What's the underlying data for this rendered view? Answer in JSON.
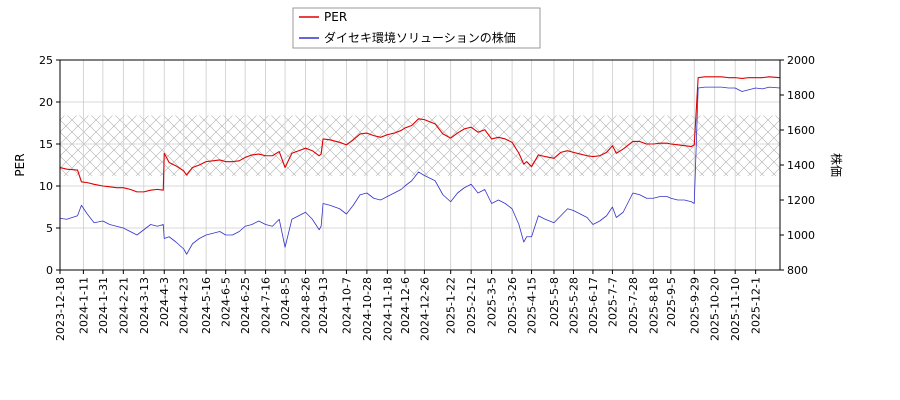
{
  "chart_data": {
    "type": "line",
    "legend": {
      "placement": "top-center",
      "entries": [
        {
          "label": "PER",
          "color": "#dd0000"
        },
        {
          "label": "ダイセキ環境ソリューションの株価",
          "color": "#3333cc"
        }
      ]
    },
    "x_start": "2023-12-18",
    "x_end": "2025-12-26",
    "x_ticks": [
      "2023-12-18",
      "2024-1-11",
      "2024-1-31",
      "2024-2-21",
      "2024-3-13",
      "2024-4-3",
      "2024-4-23",
      "2024-5-16",
      "2024-6-5",
      "2024-6-25",
      "2024-7-16",
      "2024-8-5",
      "2024-8-26",
      "2024-9-13",
      "2024-10-7",
      "2024-10-28",
      "2024-11-18",
      "2024-12-6",
      "2024-12-26",
      "2025-1-22",
      "2025-2-12",
      "2025-3-5",
      "2025-3-26",
      "2025-4-15",
      "2025-5-8",
      "2025-5-28",
      "2025-6-17",
      "2025-7-7",
      "2025-7-28",
      "2025-8-18",
      "2025-9-5",
      "2025-9-29",
      "2025-10-20",
      "2025-11-10",
      "2025-12-1"
    ],
    "y_left": {
      "label": "PER",
      "min": 0,
      "max": 25,
      "ticks": [
        0,
        5,
        10,
        15,
        20,
        25
      ]
    },
    "y_right": {
      "label": "株価",
      "min": 800,
      "max": 2000,
      "ticks": [
        800,
        1000,
        1200,
        1400,
        1600,
        1800,
        2000
      ]
    },
    "per_band": [
      11.2,
      18.4
    ],
    "grid": true,
    "series": [
      {
        "name": "PER",
        "axis": "left",
        "color": "#dd0000",
        "points": [
          [
            "2023-12-18",
            12.2
          ],
          [
            "2023-12-25",
            12.0
          ],
          [
            "2024-1-5",
            11.9
          ],
          [
            "2024-1-9",
            10.5
          ],
          [
            "2024-1-15",
            10.4
          ],
          [
            "2024-1-22",
            10.2
          ],
          [
            "2024-1-31",
            10.0
          ],
          [
            "2024-2-7",
            9.9
          ],
          [
            "2024-2-14",
            9.8
          ],
          [
            "2024-2-21",
            9.8
          ],
          [
            "2024-2-28",
            9.6
          ],
          [
            "2024-3-6",
            9.3
          ],
          [
            "2024-3-13",
            9.3
          ],
          [
            "2024-3-20",
            9.5
          ],
          [
            "2024-3-27",
            9.6
          ],
          [
            "2024-4-2",
            9.5
          ],
          [
            "2024-4-3",
            13.9
          ],
          [
            "2024-4-8",
            12.8
          ],
          [
            "2024-4-15",
            12.4
          ],
          [
            "2024-4-23",
            11.8
          ],
          [
            "2024-4-26",
            11.3
          ],
          [
            "2024-5-2",
            12.2
          ],
          [
            "2024-5-9",
            12.5
          ],
          [
            "2024-5-16",
            12.9
          ],
          [
            "2024-5-23",
            13.0
          ],
          [
            "2024-5-30",
            13.1
          ],
          [
            "2024-6-5",
            12.9
          ],
          [
            "2024-6-12",
            12.9
          ],
          [
            "2024-6-19",
            13.0
          ],
          [
            "2024-6-25",
            13.4
          ],
          [
            "2024-7-2",
            13.7
          ],
          [
            "2024-7-9",
            13.8
          ],
          [
            "2024-7-16",
            13.6
          ],
          [
            "2024-7-23",
            13.6
          ],
          [
            "2024-7-30",
            14.1
          ],
          [
            "2024-8-5",
            12.2
          ],
          [
            "2024-8-12",
            13.9
          ],
          [
            "2024-8-19",
            14.2
          ],
          [
            "2024-8-26",
            14.5
          ],
          [
            "2024-9-2",
            14.2
          ],
          [
            "2024-9-9",
            13.6
          ],
          [
            "2024-9-11",
            13.8
          ],
          [
            "2024-9-13",
            15.6
          ],
          [
            "2024-9-20",
            15.5
          ],
          [
            "2024-9-30",
            15.2
          ],
          [
            "2024-10-7",
            14.9
          ],
          [
            "2024-10-14",
            15.5
          ],
          [
            "2024-10-21",
            16.2
          ],
          [
            "2024-10-28",
            16.3
          ],
          [
            "2024-11-4",
            16.0
          ],
          [
            "2024-11-11",
            15.8
          ],
          [
            "2024-11-18",
            16.1
          ],
          [
            "2024-11-25",
            16.3
          ],
          [
            "2024-12-2",
            16.6
          ],
          [
            "2024-12-6",
            16.9
          ],
          [
            "2024-12-13",
            17.2
          ],
          [
            "2024-12-20",
            18.0
          ],
          [
            "2024-12-26",
            17.9
          ],
          [
            "2025-1-6",
            17.4
          ],
          [
            "2025-1-14",
            16.2
          ],
          [
            "2025-1-22",
            15.7
          ],
          [
            "2025-1-29",
            16.3
          ],
          [
            "2025-2-5",
            16.8
          ],
          [
            "2025-2-12",
            17.0
          ],
          [
            "2025-2-19",
            16.4
          ],
          [
            "2025-2-26",
            16.7
          ],
          [
            "2025-3-5",
            15.6
          ],
          [
            "2025-3-12",
            15.8
          ],
          [
            "2025-3-19",
            15.6
          ],
          [
            "2025-3-26",
            15.2
          ],
          [
            "2025-4-2",
            13.9
          ],
          [
            "2025-4-7",
            12.6
          ],
          [
            "2025-4-10",
            12.9
          ],
          [
            "2025-4-15",
            12.3
          ],
          [
            "2025-4-22",
            13.7
          ],
          [
            "2025-4-29",
            13.5
          ],
          [
            "2025-5-8",
            13.3
          ],
          [
            "2025-5-15",
            14.0
          ],
          [
            "2025-5-22",
            14.2
          ],
          [
            "2025-5-28",
            14.0
          ],
          [
            "2025-6-4",
            13.8
          ],
          [
            "2025-6-11",
            13.6
          ],
          [
            "2025-6-17",
            13.5
          ],
          [
            "2025-6-24",
            13.6
          ],
          [
            "2025-7-1",
            14.0
          ],
          [
            "2025-7-7",
            14.8
          ],
          [
            "2025-7-11",
            13.9
          ],
          [
            "2025-7-18",
            14.4
          ],
          [
            "2025-7-28",
            15.3
          ],
          [
            "2025-8-4",
            15.3
          ],
          [
            "2025-8-11",
            15.0
          ],
          [
            "2025-8-18",
            15.0
          ],
          [
            "2025-8-25",
            15.1
          ],
          [
            "2025-9-1",
            15.1
          ],
          [
            "2025-9-5",
            15.0
          ],
          [
            "2025-9-12",
            14.9
          ],
          [
            "2025-9-19",
            14.8
          ],
          [
            "2025-9-26",
            14.7
          ],
          [
            "2025-9-29",
            14.9
          ],
          [
            "2025-10-3",
            22.9
          ],
          [
            "2025-10-10",
            23.0
          ],
          [
            "2025-10-20",
            23.0
          ],
          [
            "2025-10-27",
            23.0
          ],
          [
            "2025-11-3",
            22.9
          ],
          [
            "2025-11-10",
            22.9
          ],
          [
            "2025-11-17",
            22.8
          ],
          [
            "2025-11-24",
            22.9
          ],
          [
            "2025-12-1",
            22.9
          ],
          [
            "2025-12-8",
            22.9
          ],
          [
            "2025-12-15",
            23.0
          ],
          [
            "2025-12-26",
            22.9
          ]
        ]
      },
      {
        "name": "ダイセキ環境ソリューションの株価",
        "axis": "right",
        "color": "#3333cc",
        "points": [
          [
            "2023-12-18",
            1095
          ],
          [
            "2023-12-25",
            1090
          ],
          [
            "2024-1-5",
            1110
          ],
          [
            "2024-1-9",
            1170
          ],
          [
            "2024-1-15",
            1120
          ],
          [
            "2024-1-22",
            1070
          ],
          [
            "2024-1-31",
            1080
          ],
          [
            "2024-2-7",
            1060
          ],
          [
            "2024-2-14",
            1050
          ],
          [
            "2024-2-21",
            1040
          ],
          [
            "2024-2-28",
            1020
          ],
          [
            "2024-3-6",
            1000
          ],
          [
            "2024-3-13",
            1030
          ],
          [
            "2024-3-20",
            1060
          ],
          [
            "2024-3-27",
            1050
          ],
          [
            "2024-4-2",
            1060
          ],
          [
            "2024-4-3",
            980
          ],
          [
            "2024-4-8",
            990
          ],
          [
            "2024-4-15",
            960
          ],
          [
            "2024-4-23",
            920
          ],
          [
            "2024-4-26",
            890
          ],
          [
            "2024-5-2",
            950
          ],
          [
            "2024-5-9",
            980
          ],
          [
            "2024-5-16",
            1000
          ],
          [
            "2024-5-23",
            1010
          ],
          [
            "2024-5-30",
            1020
          ],
          [
            "2024-6-5",
            1000
          ],
          [
            "2024-6-12",
            1000
          ],
          [
            "2024-6-19",
            1020
          ],
          [
            "2024-6-25",
            1050
          ],
          [
            "2024-7-2",
            1060
          ],
          [
            "2024-7-9",
            1080
          ],
          [
            "2024-7-16",
            1060
          ],
          [
            "2024-7-23",
            1050
          ],
          [
            "2024-7-30",
            1090
          ],
          [
            "2024-8-5",
            930
          ],
          [
            "2024-8-12",
            1090
          ],
          [
            "2024-8-19",
            1110
          ],
          [
            "2024-8-26",
            1130
          ],
          [
            "2024-9-2",
            1090
          ],
          [
            "2024-9-9",
            1030
          ],
          [
            "2024-9-11",
            1050
          ],
          [
            "2024-9-13",
            1180
          ],
          [
            "2024-9-20",
            1170
          ],
          [
            "2024-9-30",
            1150
          ],
          [
            "2024-10-7",
            1120
          ],
          [
            "2024-10-14",
            1170
          ],
          [
            "2024-10-21",
            1230
          ],
          [
            "2024-10-28",
            1240
          ],
          [
            "2024-11-4",
            1210
          ],
          [
            "2024-11-11",
            1200
          ],
          [
            "2024-11-18",
            1220
          ],
          [
            "2024-11-25",
            1240
          ],
          [
            "2024-12-2",
            1260
          ],
          [
            "2024-12-6",
            1280
          ],
          [
            "2024-12-13",
            1310
          ],
          [
            "2024-12-20",
            1360
          ],
          [
            "2024-12-26",
            1340
          ],
          [
            "2025-1-6",
            1310
          ],
          [
            "2025-1-14",
            1230
          ],
          [
            "2025-1-22",
            1190
          ],
          [
            "2025-1-29",
            1240
          ],
          [
            "2025-2-5",
            1270
          ],
          [
            "2025-2-12",
            1290
          ],
          [
            "2025-2-19",
            1240
          ],
          [
            "2025-2-26",
            1260
          ],
          [
            "2025-3-5",
            1180
          ],
          [
            "2025-3-12",
            1200
          ],
          [
            "2025-3-19",
            1180
          ],
          [
            "2025-3-26",
            1150
          ],
          [
            "2025-4-2",
            1060
          ],
          [
            "2025-4-7",
            960
          ],
          [
            "2025-4-10",
            990
          ],
          [
            "2025-4-15",
            990
          ],
          [
            "2025-4-22",
            1110
          ],
          [
            "2025-4-29",
            1090
          ],
          [
            "2025-5-8",
            1070
          ],
          [
            "2025-5-15",
            1110
          ],
          [
            "2025-5-22",
            1150
          ],
          [
            "2025-5-28",
            1140
          ],
          [
            "2025-6-4",
            1120
          ],
          [
            "2025-6-11",
            1100
          ],
          [
            "2025-6-17",
            1060
          ],
          [
            "2025-6-24",
            1080
          ],
          [
            "2025-7-1",
            1110
          ],
          [
            "2025-7-7",
            1160
          ],
          [
            "2025-7-11",
            1100
          ],
          [
            "2025-7-18",
            1130
          ],
          [
            "2025-7-28",
            1240
          ],
          [
            "2025-8-4",
            1230
          ],
          [
            "2025-8-11",
            1210
          ],
          [
            "2025-8-18",
            1210
          ],
          [
            "2025-8-25",
            1220
          ],
          [
            "2025-9-1",
            1220
          ],
          [
            "2025-9-5",
            1210
          ],
          [
            "2025-9-12",
            1200
          ],
          [
            "2025-9-19",
            1200
          ],
          [
            "2025-9-26",
            1190
          ],
          [
            "2025-9-29",
            1180
          ],
          [
            "2025-10-3",
            1840
          ],
          [
            "2025-10-10",
            1845
          ],
          [
            "2025-10-20",
            1845
          ],
          [
            "2025-10-27",
            1845
          ],
          [
            "2025-11-3",
            1840
          ],
          [
            "2025-11-10",
            1840
          ],
          [
            "2025-11-17",
            1820
          ],
          [
            "2025-11-24",
            1830
          ],
          [
            "2025-12-1",
            1840
          ],
          [
            "2025-12-8",
            1835
          ],
          [
            "2025-12-15",
            1845
          ],
          [
            "2025-12-26",
            1840
          ]
        ]
      }
    ]
  }
}
